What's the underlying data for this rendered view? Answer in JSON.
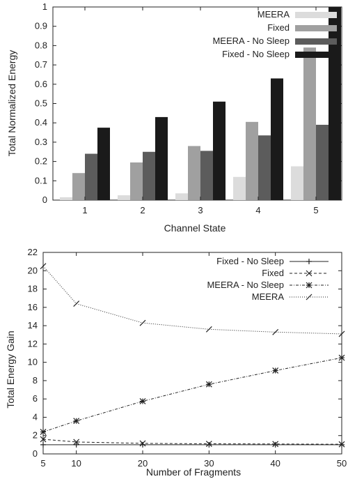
{
  "chart_data": [
    {
      "type": "bar",
      "xlabel": "Channel State",
      "ylabel": "Total Normalized Energy",
      "ylim": [
        0,
        1
      ],
      "yticks": [
        0,
        0.1,
        0.2,
        0.3,
        0.4,
        0.5,
        0.6,
        0.7,
        0.8,
        0.9,
        1
      ],
      "categories": [
        "1",
        "2",
        "3",
        "4",
        "5"
      ],
      "legend_position": "top-right",
      "series": [
        {
          "name": "MEERA",
          "color": "#dcdcdc",
          "values": [
            0.015,
            0.025,
            0.035,
            0.12,
            0.175
          ]
        },
        {
          "name": "Fixed",
          "color": "#a0a0a0",
          "values": [
            0.14,
            0.195,
            0.28,
            0.405,
            0.79
          ]
        },
        {
          "name": "MEERA - No Sleep",
          "color": "#5c5c5c",
          "values": [
            0.24,
            0.25,
            0.255,
            0.335,
            0.39
          ]
        },
        {
          "name": "Fixed - No Sleep",
          "color": "#1a1a1a",
          "values": [
            0.375,
            0.43,
            0.51,
            0.63,
            1.0
          ]
        }
      ]
    },
    {
      "type": "line",
      "xlabel": "Number of Fragments",
      "ylabel": "Total Energy Gain",
      "xlim": [
        5,
        50
      ],
      "ylim": [
        0,
        22
      ],
      "xticks": [
        5,
        10,
        20,
        30,
        40,
        50
      ],
      "yticks": [
        0,
        2,
        4,
        6,
        8,
        10,
        12,
        14,
        16,
        18,
        20,
        22
      ],
      "x": [
        5,
        10,
        20,
        30,
        40,
        50
      ],
      "legend_position": "top-right",
      "series": [
        {
          "name": "Fixed - No Sleep",
          "marker": "plus",
          "dash": "solid",
          "values": [
            1,
            1,
            1,
            1,
            1,
            1
          ]
        },
        {
          "name": "Fixed",
          "marker": "x",
          "dash": "dashed",
          "values": [
            1.6,
            1.3,
            1.15,
            1.1,
            1.08,
            1.05
          ]
        },
        {
          "name": "MEERA - No Sleep",
          "marker": "star",
          "dash": "dashdot",
          "values": [
            2.4,
            3.6,
            5.75,
            7.6,
            9.1,
            10.5
          ]
        },
        {
          "name": "MEERA",
          "marker": "slash",
          "dash": "dotted",
          "values": [
            20.5,
            16.4,
            14.3,
            13.6,
            13.3,
            13.1
          ]
        }
      ]
    }
  ]
}
